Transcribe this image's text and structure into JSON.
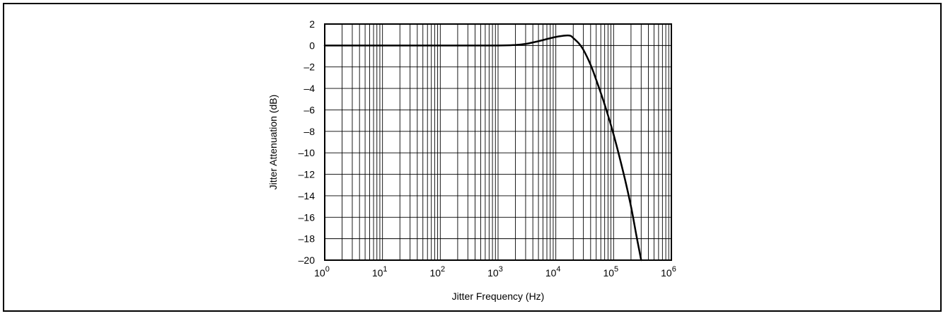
{
  "chart_data": {
    "type": "line",
    "title": "",
    "xlabel": "Jitter Frequency (Hz)",
    "ylabel": "Jitter Attenuation (dB)",
    "x_scale": "log",
    "xlim": [
      1,
      1000000
    ],
    "ylim": [
      -20,
      2
    ],
    "grid": true,
    "x_ticks": [
      {
        "base": "10",
        "exp": "0"
      },
      {
        "base": "10",
        "exp": "1"
      },
      {
        "base": "10",
        "exp": "2"
      },
      {
        "base": "10",
        "exp": "3"
      },
      {
        "base": "10",
        "exp": "4"
      },
      {
        "base": "10",
        "exp": "5"
      },
      {
        "base": "10",
        "exp": "6"
      }
    ],
    "y_ticks": [
      "2",
      "0",
      "–2",
      "–4",
      "–6",
      "–8",
      "–10",
      "–12",
      "–14",
      "–16",
      "–18",
      "–20"
    ],
    "series": [
      {
        "color": "#000000",
        "x": [
          1,
          10,
          100,
          1000,
          2000,
          3000,
          5000,
          7000,
          10000,
          15000,
          18000,
          20000,
          25000,
          30000,
          40000,
          50000,
          70000,
          100000,
          150000,
          200000,
          250000,
          300000
        ],
        "y": [
          0,
          0,
          0,
          0,
          0.05,
          0.15,
          0.4,
          0.6,
          0.8,
          0.93,
          0.9,
          0.7,
          0.2,
          -0.4,
          -1.8,
          -3.2,
          -5.5,
          -8.3,
          -12.0,
          -15.0,
          -17.8,
          -20.0
        ]
      }
    ]
  }
}
